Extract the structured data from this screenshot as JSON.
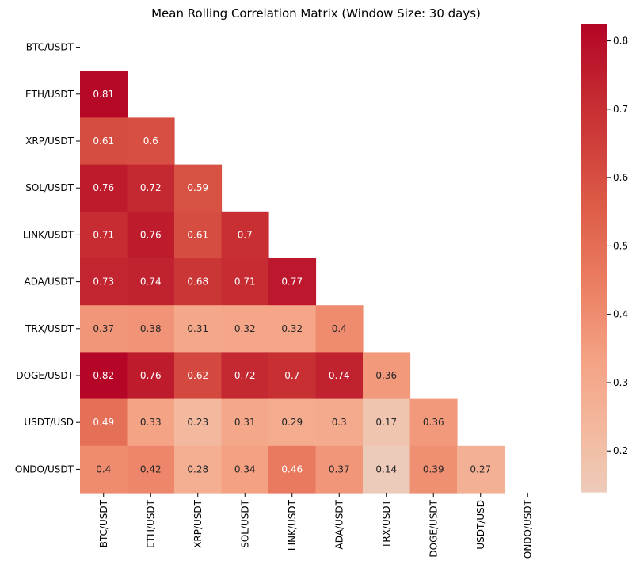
{
  "chart_data": {
    "type": "heatmap",
    "title": "Mean Rolling Correlation Matrix (Window Size: 30 days)",
    "rows": [
      "BTC/USDT",
      "ETH/USDT",
      "XRP/USDT",
      "SOL/USDT",
      "LINK/USDT",
      "ADA/USDT",
      "TRX/USDT",
      "DOGE/USDT",
      "USDT/USD",
      "ONDO/USDT"
    ],
    "columns": [
      "BTC/USDT",
      "ETH/USDT",
      "XRP/USDT",
      "SOL/USDT",
      "LINK/USDT",
      "ADA/USDT",
      "TRX/USDT",
      "DOGE/USDT",
      "USDT/USD",
      "ONDO/USDT"
    ],
    "mask": "upper-triangle-including-diagonal",
    "values": [
      [
        null,
        null,
        null,
        null,
        null,
        null,
        null,
        null,
        null,
        null
      ],
      [
        0.81,
        null,
        null,
        null,
        null,
        null,
        null,
        null,
        null,
        null
      ],
      [
        0.61,
        0.6,
        null,
        null,
        null,
        null,
        null,
        null,
        null,
        null
      ],
      [
        0.76,
        0.72,
        0.59,
        null,
        null,
        null,
        null,
        null,
        null,
        null
      ],
      [
        0.71,
        0.76,
        0.61,
        0.7,
        null,
        null,
        null,
        null,
        null,
        null
      ],
      [
        0.73,
        0.74,
        0.68,
        0.71,
        0.77,
        null,
        null,
        null,
        null,
        null
      ],
      [
        0.37,
        0.38,
        0.31,
        0.32,
        0.32,
        0.4,
        null,
        null,
        null,
        null
      ],
      [
        0.82,
        0.76,
        0.62,
        0.72,
        0.7,
        0.74,
        0.36,
        null,
        null,
        null
      ],
      [
        0.49,
        0.33,
        0.23,
        0.31,
        0.29,
        0.3,
        0.17,
        0.36,
        null,
        null
      ],
      [
        0.4,
        0.42,
        0.28,
        0.34,
        0.46,
        0.37,
        0.14,
        0.39,
        0.27,
        null
      ]
    ],
    "colormap": "coolwarm (center 0)",
    "colorbar": {
      "min": 0.14,
      "max": 0.825,
      "ticks": [
        0.2,
        0.3,
        0.4,
        0.5,
        0.6,
        0.7,
        0.8
      ],
      "tick_labels": [
        "0.2",
        "0.3",
        "0.4",
        "0.5",
        "0.6",
        "0.7",
        "0.8"
      ]
    },
    "annotations": true,
    "grid": false,
    "legend": "colorbar-right"
  }
}
